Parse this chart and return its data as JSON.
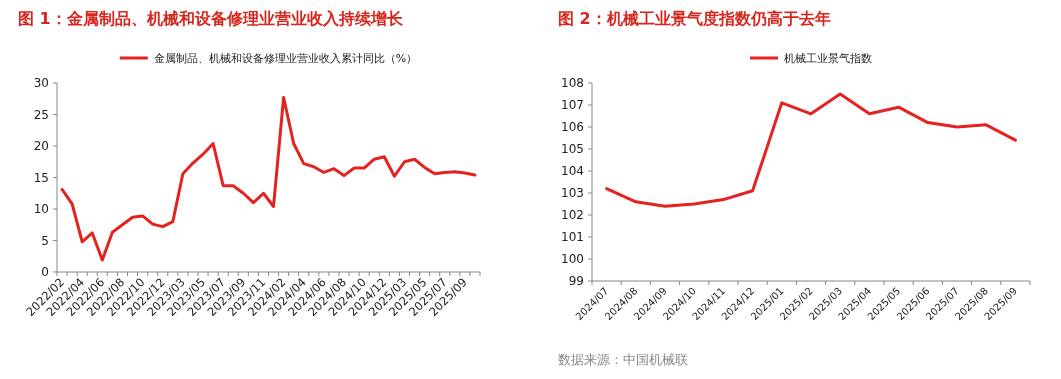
{
  "chart_data": [
    {
      "type": "line",
      "title": "图 1：金属制品、机械和设备修理业营业收入持续增长",
      "categories": [
        "2022/02",
        null,
        "2022/04",
        null,
        "2022/06",
        null,
        "2022/08",
        null,
        "2022/10",
        null,
        "2022/12",
        null,
        "2023/03",
        null,
        "2023/05",
        null,
        "2023/07",
        null,
        "2023/09",
        null,
        "2023/11",
        null,
        "2024/02",
        null,
        "2024/04",
        null,
        "2024/06",
        null,
        "2024/08",
        null,
        "2024/10",
        null,
        "2024/12",
        null,
        "2025/03",
        null,
        "2025/05",
        null,
        "2025/07",
        null,
        "2025/09",
        null
      ],
      "series": [
        {
          "name": "金属制品、机械和设备修理业营业收入累计同比（%）",
          "color": "#e3231f",
          "values": [
            13.1,
            10.8,
            4.8,
            6.2,
            1.9,
            6.3,
            7.5,
            8.7,
            8.9,
            7.6,
            7.2,
            8.0,
            15.6,
            17.3,
            18.7,
            20.4,
            13.7,
            13.7,
            12.5,
            11.0,
            12.5,
            10.4,
            27.7,
            20.4,
            17.2,
            16.7,
            15.8,
            16.4,
            15.3,
            16.5,
            16.5,
            17.9,
            18.3,
            15.2,
            17.5,
            17.9,
            16.6,
            15.6,
            15.8,
            15.9,
            15.7,
            15.4
          ]
        }
      ],
      "ylim": [
        0,
        30
      ],
      "yticks": [
        0,
        5,
        10,
        15,
        20,
        25,
        30
      ],
      "legend": "top",
      "grid": false
    },
    {
      "type": "line",
      "title": "图 2：机械工业景气度指数仍高于去年",
      "categories": [
        "2024/07",
        "2024/08",
        "2024/09",
        "2024/10",
        "2024/11",
        "2024/12",
        "2025/01",
        "2025/02",
        "2025/03",
        "2025/04",
        "2025/05",
        "2025/06",
        "2025/07",
        "2025/08",
        "2025/09"
      ],
      "series": [
        {
          "name": "机械工业景气指数",
          "color": "#e3231f",
          "values": [
            103.2,
            102.6,
            102.4,
            102.5,
            102.7,
            103.1,
            107.1,
            106.6,
            107.5,
            106.6,
            106.9,
            106.2,
            106.0,
            106.1,
            105.4
          ]
        }
      ],
      "ylim": [
        99,
        108
      ],
      "yticks": [
        99,
        100,
        101,
        102,
        103,
        104,
        105,
        106,
        107,
        108
      ],
      "legend": "top",
      "grid": false,
      "annotations": [
        "数据来源：中国机械联"
      ]
    }
  ]
}
